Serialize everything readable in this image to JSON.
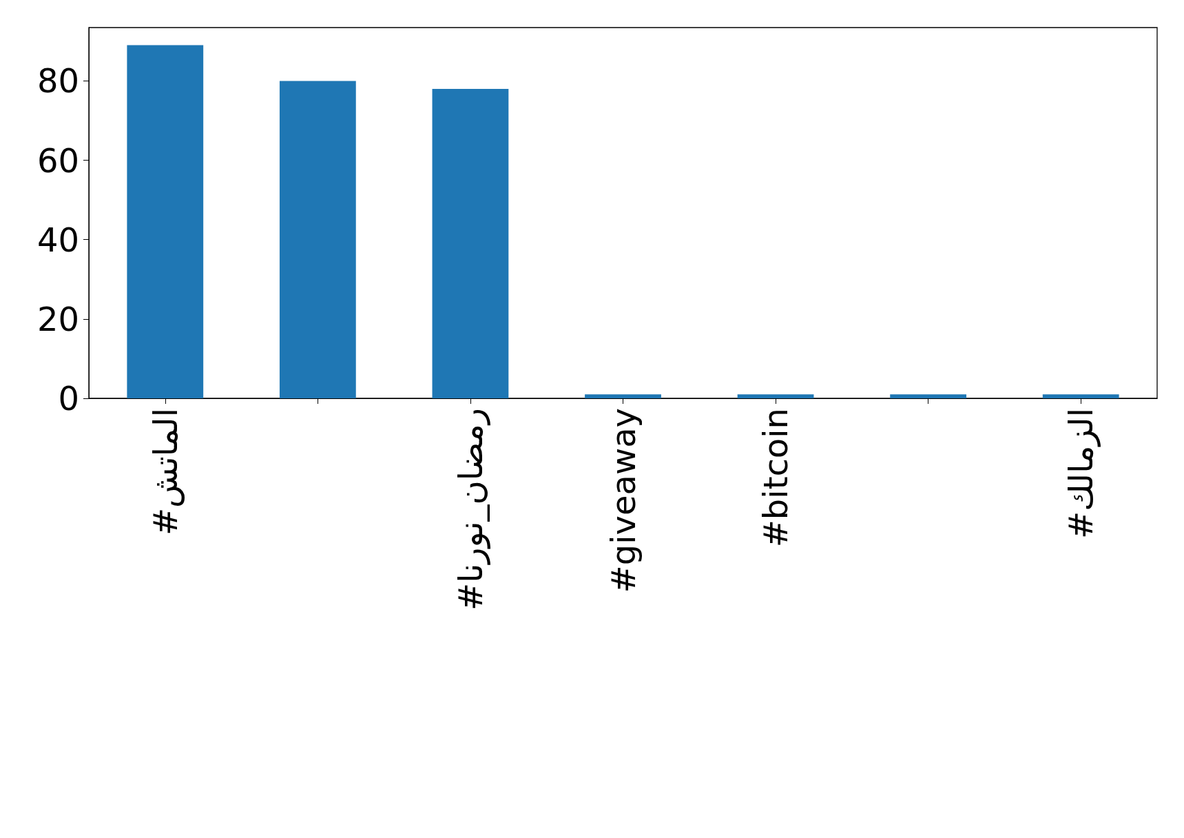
{
  "chart_data": {
    "type": "bar",
    "categories": [
      "#الماتش",
      null,
      "#رمضان_نورنا",
      "#giveaway",
      "#bitcoin",
      null,
      "#الزمالك"
    ],
    "values": [
      89,
      80,
      78,
      1,
      1,
      1,
      1
    ],
    "color": "#1f77b4",
    "ylim": [
      0,
      93.45
    ],
    "yticks": [
      0,
      20,
      40,
      60,
      80
    ],
    "grid": false
  }
}
